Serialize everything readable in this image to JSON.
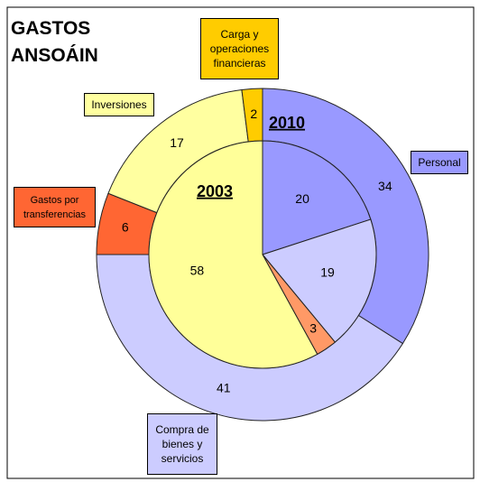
{
  "chart_data": {
    "type": "pie",
    "title": [
      "GASTOS",
      "ANSOÁIN"
    ],
    "categories": [
      "Personal",
      "Compra de bienes y servicios",
      "Gastos por transferencias",
      "Inversiones",
      "Carga y operaciones financieras"
    ],
    "series": [
      {
        "name": "2010",
        "colors": [
          "#9999ff",
          "#ccccff",
          "#ff6633",
          "#ffffa0",
          "#ffcc00"
        ],
        "values": [
          34,
          41,
          6,
          17,
          2
        ]
      },
      {
        "name": "2003",
        "colors": [
          "#9999ff",
          "#ccccff",
          "#ff9966",
          "#ffff99",
          "#ffcc00"
        ],
        "values": [
          20,
          19,
          3,
          58,
          null
        ]
      }
    ]
  }
}
